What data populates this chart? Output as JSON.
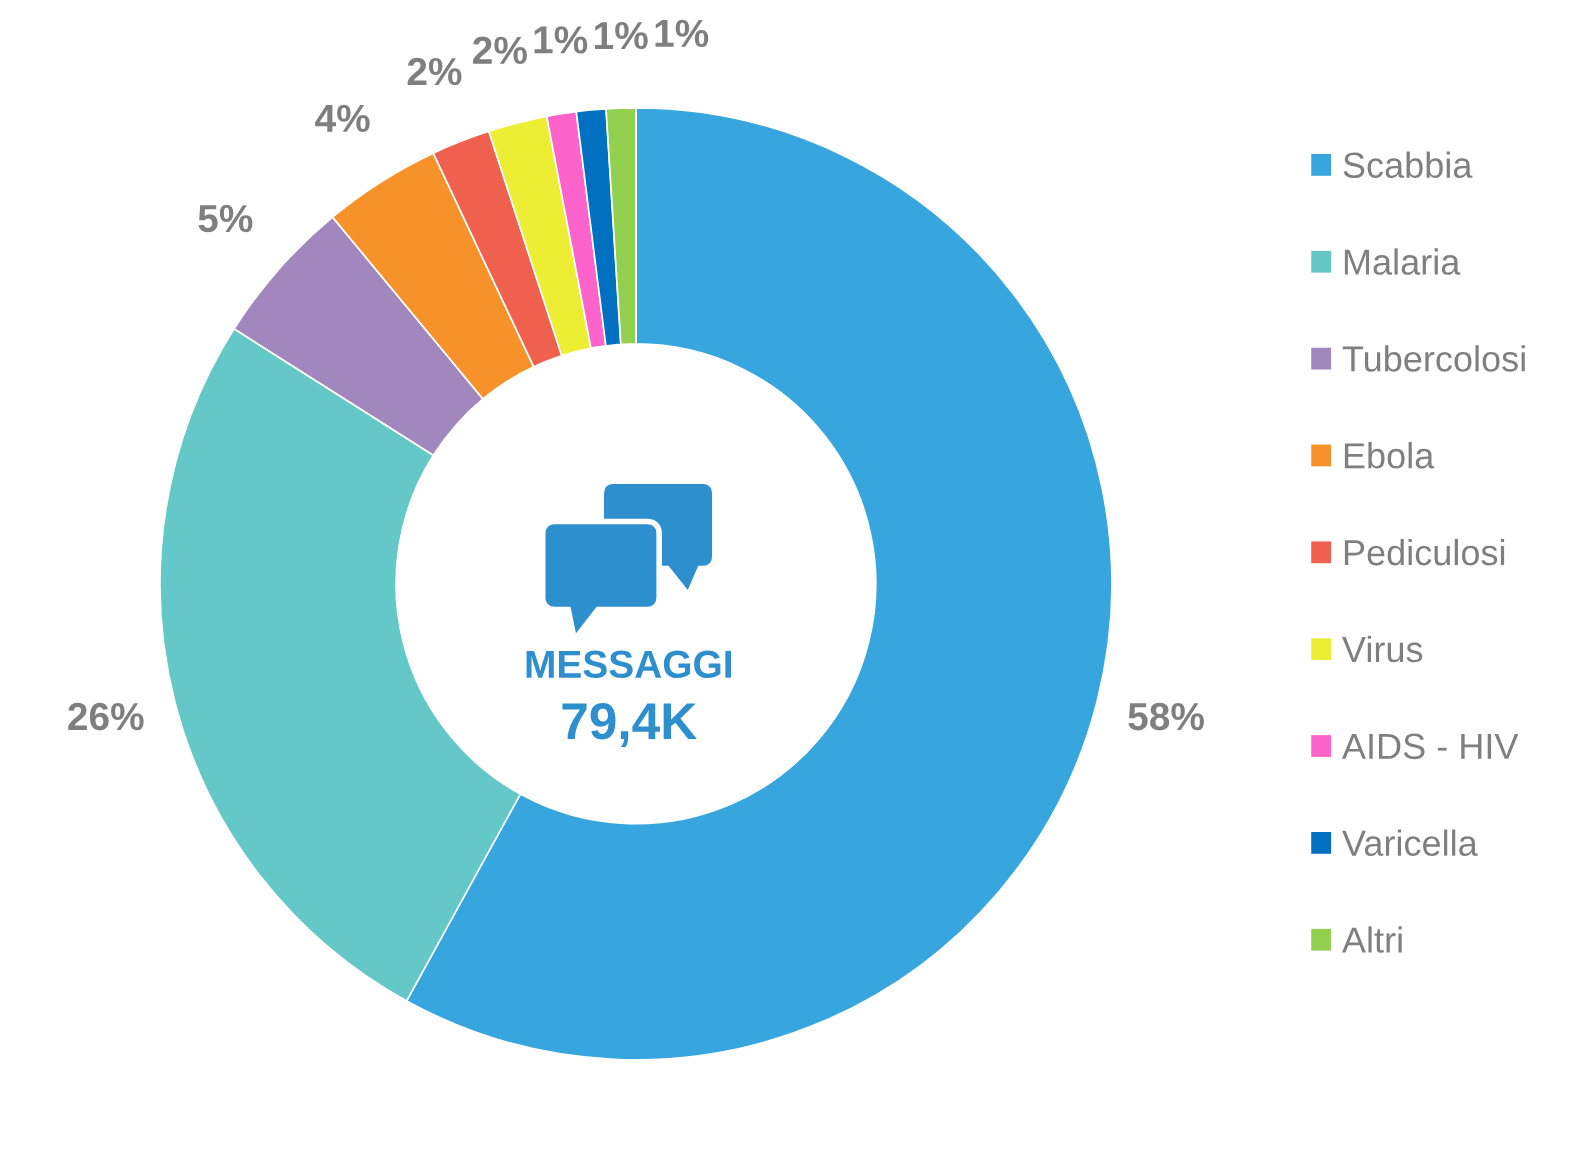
{
  "chart_data": {
    "type": "donut",
    "categories": [
      "Scabbia",
      "Malaria",
      "Tubercolosi",
      "Ebola",
      "Pediculosi",
      "Virus",
      "AIDS - HIV",
      "Varicella",
      "Altri"
    ],
    "values": [
      58,
      26,
      5,
      4,
      2,
      2,
      1,
      1,
      1
    ],
    "value_labels": [
      "58%",
      "26%",
      "5%",
      "4%",
      "2%",
      "2%",
      "1%",
      "1%",
      "1%"
    ],
    "colors": [
      "#38a6de",
      "#64c8c8",
      "#a287bf",
      "#f7922a",
      "#f0604e",
      "#ebee33",
      "#fe63cb",
      "#0070c0",
      "#92d050"
    ],
    "legend": "right",
    "annotations": [
      "MESSAGGI",
      "79,4K"
    ]
  }
}
